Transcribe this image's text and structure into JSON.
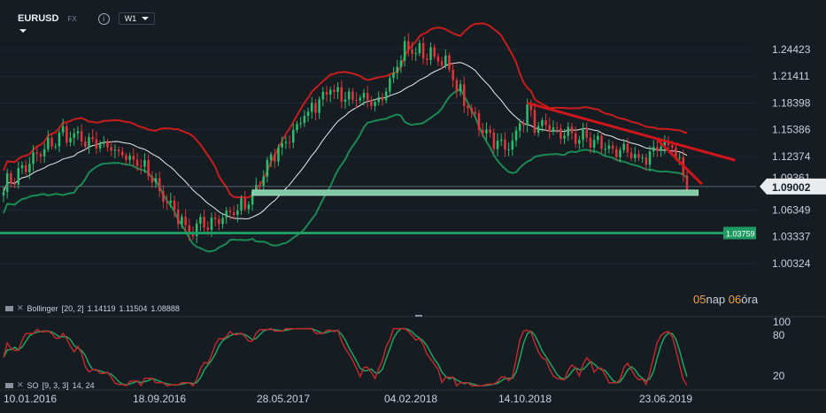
{
  "header": {
    "symbol": "EURUSD",
    "type": "FX",
    "info": "i",
    "timeframe": "W1"
  },
  "price_axis": {
    "ticks": [
      "1.24423",
      "1.21411",
      "1.18398",
      "1.15386",
      "1.12374",
      "1.06349",
      "1.03337",
      "1.00324"
    ],
    "current_price": "1.09002",
    "hidden_tick": "1.09361",
    "support_price": "1.03759"
  },
  "countdown": {
    "days": "05",
    "days_unit": "nap",
    "hours": "06",
    "hours_unit": "óra"
  },
  "indicators": {
    "bollinger": {
      "label": "Bollinger",
      "params": "[20, 2]",
      "upper": "1.14119",
      "middle": "1.11504",
      "lower": "1.08888"
    },
    "stochastic": {
      "label": "SO",
      "params": "[9, 3, 3]",
      "levels": "14, 24",
      "scale": [
        "100",
        "80",
        "20"
      ]
    }
  },
  "time_axis": [
    "10.01.2016",
    "18.09.2016",
    "28.05.2017",
    "04.02.2018",
    "14.10.2018",
    "23.06.2019"
  ],
  "colors": {
    "background": "#151c22",
    "bull": "#2dbd6e",
    "bear": "#e0353b",
    "bb_upper": "#c81d1d",
    "bb_lower": "#1b8a55",
    "bb_middle": "#e8eef2",
    "trendline": "#d0161d",
    "support": "#1e9a63",
    "support_zone": "#7fcaa6",
    "stoch_k": "#c0282d",
    "stoch_d": "#1fa463",
    "countdown": "#f0a34b"
  },
  "chart_data": {
    "type": "candlestick",
    "instrument": "EURUSD",
    "timeframe": "W1",
    "x_range": [
      "2016-01-10",
      "2019-07-21"
    ],
    "y_range": [
      1.00324,
      1.26
    ],
    "price_keypoints": [
      {
        "date": "2016-01-10",
        "close": 1.09
      },
      {
        "date": "2016-05-01",
        "close": 1.15
      },
      {
        "date": "2016-09-18",
        "close": 1.12
      },
      {
        "date": "2016-12-25",
        "close": 1.04
      },
      {
        "date": "2017-04-16",
        "close": 1.07
      },
      {
        "date": "2017-05-28",
        "close": 1.12
      },
      {
        "date": "2017-09-10",
        "close": 1.2
      },
      {
        "date": "2017-12-10",
        "close": 1.18
      },
      {
        "date": "2018-02-04",
        "close": 1.245
      },
      {
        "date": "2018-04-15",
        "close": 1.235
      },
      {
        "date": "2018-06-10",
        "close": 1.17
      },
      {
        "date": "2018-08-12",
        "close": 1.13
      },
      {
        "date": "2018-09-23",
        "close": 1.175
      },
      {
        "date": "2018-10-14",
        "close": 1.155
      },
      {
        "date": "2019-01-06",
        "close": 1.145
      },
      {
        "date": "2019-04-21",
        "close": 1.12
      },
      {
        "date": "2019-06-23",
        "close": 1.14
      },
      {
        "date": "2019-07-21",
        "close": 1.09
      }
    ],
    "bollinger": {
      "period": 20,
      "deviation": 2,
      "upper": 1.14119,
      "middle": 1.11504,
      "lower": 1.08888
    },
    "trendlines": [
      {
        "from": {
          "date": "2018-09-23",
          "price": 1.184
        },
        "to": {
          "date": "2019-10-20",
          "price": 1.1195
        }
      },
      {
        "from": {
          "date": "2019-05-26",
          "price": 1.143
        },
        "to": {
          "date": "2019-08-18",
          "price": 1.0925
        }
      }
    ],
    "support_zone": {
      "from": "2017-04-23",
      "to": "2019-08-11",
      "price": 1.083
    },
    "support_line": {
      "price": 1.03759
    },
    "current_price": 1.09002,
    "stochastic": {
      "k": 9,
      "d": 3,
      "slowing": 3,
      "levels": [
        14,
        24
      ],
      "scale_marks": [
        100,
        80,
        20
      ]
    }
  }
}
